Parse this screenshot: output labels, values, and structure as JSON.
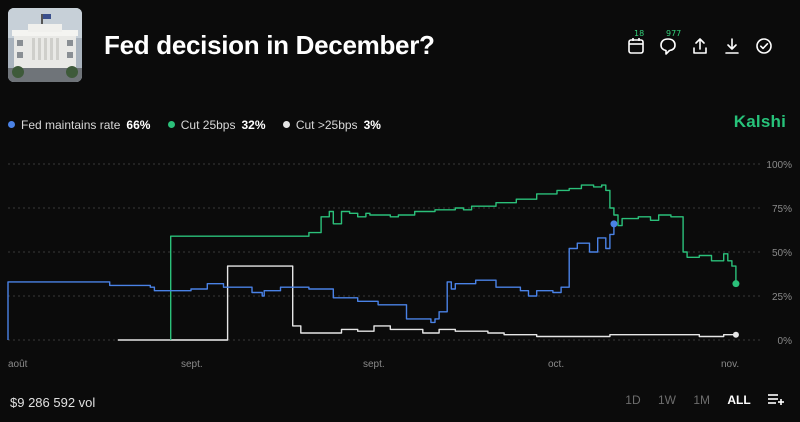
{
  "market": {
    "title": "Fed decision in December?",
    "brand": "Kalshi",
    "volume": "$9 286 592 vol"
  },
  "actions": [
    {
      "icon": "calendar-icon",
      "badge": "18"
    },
    {
      "icon": "comment-icon",
      "badge": "977"
    },
    {
      "icon": "share-icon",
      "badge": ""
    },
    {
      "icon": "download-icon",
      "badge": ""
    },
    {
      "icon": "check-circle-icon",
      "badge": ""
    }
  ],
  "ranges": [
    "1D",
    "1W",
    "1M",
    "ALL"
  ],
  "active_range": "ALL",
  "colors": {
    "maintain": "#4a82e6",
    "cut25": "#2bc07a",
    "cut_more": "#e6e6e6",
    "brand": "#27c27a",
    "grid": "#3a3a3a"
  },
  "chart_data": {
    "type": "line",
    "x_ticks": [
      "août",
      "sept.",
      "sept.",
      "oct.",
      "nov."
    ],
    "y_ticks": [
      "0%",
      "25%",
      "50%",
      "75%",
      "100%"
    ],
    "ylim": [
      0,
      100
    ],
    "grid": true,
    "legend": "top-left",
    "series": [
      {
        "name": "Fed maintains rate",
        "current": "66%",
        "color": "#4a82e6",
        "points": [
          [
            0,
            0
          ],
          [
            0,
            33
          ],
          [
            0.24,
            33
          ],
          [
            0.25,
            31
          ],
          [
            0.35,
            30
          ],
          [
            0.36,
            28
          ],
          [
            0.44,
            28
          ],
          [
            0.45,
            29
          ],
          [
            0.49,
            32
          ],
          [
            0.52,
            32
          ],
          [
            0.53,
            30
          ],
          [
            0.59,
            30
          ],
          [
            0.6,
            27
          ],
          [
            0.62,
            27
          ],
          [
            0.625,
            25
          ],
          [
            0.63,
            28
          ],
          [
            0.66,
            28
          ],
          [
            0.67,
            30
          ],
          [
            0.73,
            30
          ],
          [
            0.74,
            29
          ],
          [
            0.8,
            24
          ],
          [
            0.86,
            22
          ],
          [
            0.9,
            22
          ],
          [
            0.91,
            20
          ],
          [
            0.94,
            20
          ],
          [
            0.98,
            12
          ],
          [
            1.02,
            12
          ],
          [
            1.04,
            10
          ],
          [
            1.05,
            12
          ],
          [
            1.06,
            16
          ],
          [
            1.08,
            33
          ],
          [
            1.09,
            29
          ],
          [
            1.1,
            32
          ],
          [
            1.15,
            34
          ],
          [
            1.2,
            30
          ],
          [
            1.24,
            30
          ],
          [
            1.26,
            28
          ],
          [
            1.28,
            25
          ],
          [
            1.3,
            28
          ],
          [
            1.34,
            27
          ],
          [
            1.36,
            30
          ],
          [
            1.38,
            52
          ],
          [
            1.4,
            55
          ],
          [
            1.43,
            50
          ],
          [
            1.45,
            58
          ],
          [
            1.47,
            52
          ],
          [
            1.48,
            60
          ],
          [
            1.49,
            66
          ]
        ]
      },
      {
        "name": "Cut 25bps",
        "current": "32%",
        "color": "#2bc07a",
        "points": [
          [
            0.4,
            0
          ],
          [
            0.4,
            59
          ],
          [
            0.73,
            59
          ],
          [
            0.74,
            61
          ],
          [
            0.76,
            61
          ],
          [
            0.77,
            70
          ],
          [
            0.79,
            73
          ],
          [
            0.8,
            66
          ],
          [
            0.82,
            73
          ],
          [
            0.84,
            72
          ],
          [
            0.86,
            70
          ],
          [
            0.88,
            72
          ],
          [
            0.89,
            71
          ],
          [
            0.94,
            70
          ],
          [
            0.96,
            71
          ],
          [
            1,
            73
          ],
          [
            1.05,
            74
          ],
          [
            1.1,
            75
          ],
          [
            1.12,
            74
          ],
          [
            1.14,
            76
          ],
          [
            1.2,
            78
          ],
          [
            1.25,
            80
          ],
          [
            1.3,
            83
          ],
          [
            1.35,
            85
          ],
          [
            1.38,
            86
          ],
          [
            1.41,
            88
          ],
          [
            1.44,
            87
          ],
          [
            1.46,
            88
          ],
          [
            1.47,
            85
          ],
          [
            1.48,
            75
          ],
          [
            1.49,
            71
          ],
          [
            1.5,
            65
          ],
          [
            1.51,
            69
          ],
          [
            1.55,
            70
          ],
          [
            1.58,
            68
          ],
          [
            1.6,
            71
          ],
          [
            1.63,
            70
          ],
          [
            1.65,
            70
          ],
          [
            1.66,
            50
          ],
          [
            1.67,
            47
          ],
          [
            1.7,
            48
          ],
          [
            1.73,
            45
          ],
          [
            1.76,
            49
          ],
          [
            1.77,
            45
          ],
          [
            1.78,
            42
          ],
          [
            1.79,
            32
          ]
        ]
      },
      {
        "name": "Cut >25bps",
        "current": "3%",
        "color": "#e6e6e6",
        "points": [
          [
            0.27,
            0
          ],
          [
            0.27,
            0
          ],
          [
            0.27,
            0
          ],
          [
            0.27,
            0
          ],
          [
            0.27,
            0
          ],
          [
            0.27,
            0
          ],
          [
            0.27,
            0
          ],
          [
            0.27,
            0
          ],
          [
            0.27,
            0
          ],
          [
            0.54,
            0
          ],
          [
            0.54,
            42
          ],
          [
            0.7,
            42
          ],
          [
            0.7,
            8
          ],
          [
            0.72,
            4
          ],
          [
            0.78,
            4
          ],
          [
            0.82,
            6
          ],
          [
            0.86,
            5
          ],
          [
            0.9,
            8
          ],
          [
            0.94,
            6
          ],
          [
            0.98,
            6
          ],
          [
            1.02,
            4
          ],
          [
            1.06,
            6
          ],
          [
            1.1,
            5
          ],
          [
            1.14,
            5
          ],
          [
            1.18,
            4
          ],
          [
            1.22,
            3
          ],
          [
            1.3,
            2
          ],
          [
            1.36,
            2
          ],
          [
            1.42,
            2
          ],
          [
            1.48,
            3
          ],
          [
            1.52,
            3
          ],
          [
            1.56,
            3
          ],
          [
            1.6,
            3
          ],
          [
            1.64,
            3
          ],
          [
            1.7,
            2
          ],
          [
            1.76,
            3
          ],
          [
            1.79,
            3
          ]
        ]
      }
    ]
  }
}
